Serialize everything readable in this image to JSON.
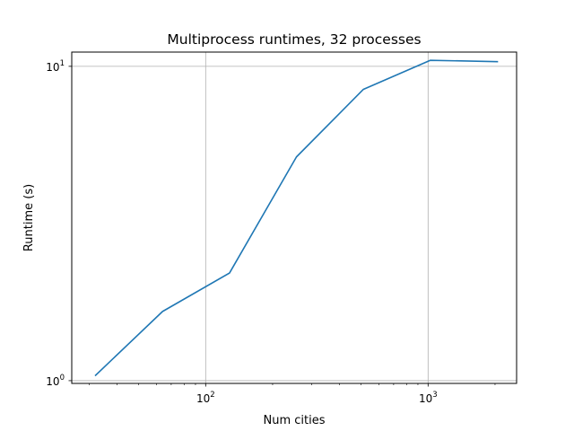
{
  "chart_data": {
    "type": "line",
    "title": "Multiprocess runtimes, 32 processes",
    "xlabel": "Num cities",
    "ylabel": "Runtime (s)",
    "xscale": "log",
    "yscale": "log",
    "xlim": [
      25,
      2500
    ],
    "ylim": [
      0.98,
      11.1
    ],
    "grid": true,
    "x_major_ticks": [
      {
        "value": 100,
        "base": "10",
        "exp": "2"
      },
      {
        "value": 1000,
        "base": "10",
        "exp": "3"
      }
    ],
    "x_minor_ticks": [
      30,
      40,
      50,
      60,
      70,
      80,
      90,
      200,
      300,
      400,
      500,
      600,
      700,
      800,
      900,
      2000
    ],
    "y_major_ticks": [
      {
        "value": 1,
        "base": "10",
        "exp": "0"
      },
      {
        "value": 10,
        "base": "10",
        "exp": "1"
      }
    ],
    "series": [
      {
        "color": "#1f77b4",
        "x": [
          32,
          64,
          128,
          256,
          512,
          1024,
          2048
        ],
        "y": [
          1.04,
          1.66,
          2.2,
          5.15,
          8.45,
          10.45,
          10.35
        ]
      }
    ]
  }
}
